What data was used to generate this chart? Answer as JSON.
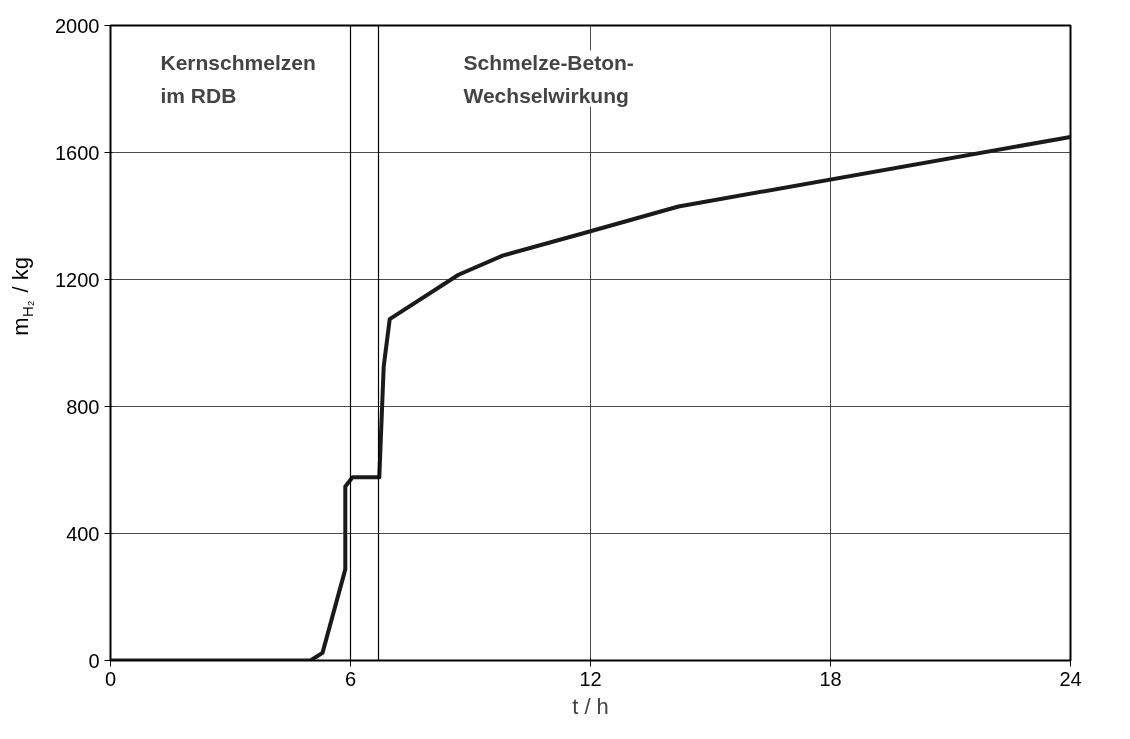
{
  "chart_data": {
    "type": "line",
    "xlabel": "t / h",
    "ylabel": "m$_{H₂}$ / kg",
    "x": [
      0,
      5.0,
      5.3,
      5.87,
      5.87,
      6.05,
      6.72,
      6.83,
      6.98,
      8.7,
      9.8,
      12.0,
      14.2,
      24.0
    ],
    "series": [
      {
        "color": "#1a1a1a",
        "values": [
          0,
          0,
          24,
          287,
          548,
          577,
          577,
          926,
          1075,
          1215,
          1275,
          1352,
          1430,
          1649
        ]
      }
    ],
    "xlim": [
      0,
      24
    ],
    "ylim": [
      0,
      2000
    ],
    "xticks": [
      0,
      6,
      12,
      18,
      24
    ],
    "yticks": [
      0,
      400,
      800,
      1200,
      1600,
      2000
    ],
    "grid": true,
    "line_style": "solid",
    "marker": "none",
    "ref_lines": [
      {
        "axis": "x",
        "value": 6.0,
        "label": null,
        "color": "#000000"
      },
      {
        "axis": "x",
        "value": 6.7,
        "label": null,
        "color": "#000000"
      }
    ],
    "annotations": [
      "Kernschmelzen\nim RDB",
      "Schmelze-Beton-\nWechselwirkung"
    ]
  }
}
